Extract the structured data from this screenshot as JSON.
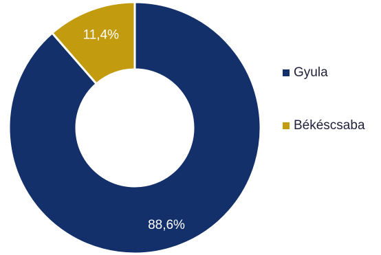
{
  "chart_data": {
    "type": "pie",
    "variant": "donut",
    "categories": [
      "Gyula",
      "Békéscsaba"
    ],
    "values": [
      88.6,
      11.4
    ],
    "data_labels": [
      "88,6%",
      "11,4%"
    ],
    "colors": [
      "#14306b",
      "#c39b0f"
    ],
    "legend_position": "right"
  }
}
